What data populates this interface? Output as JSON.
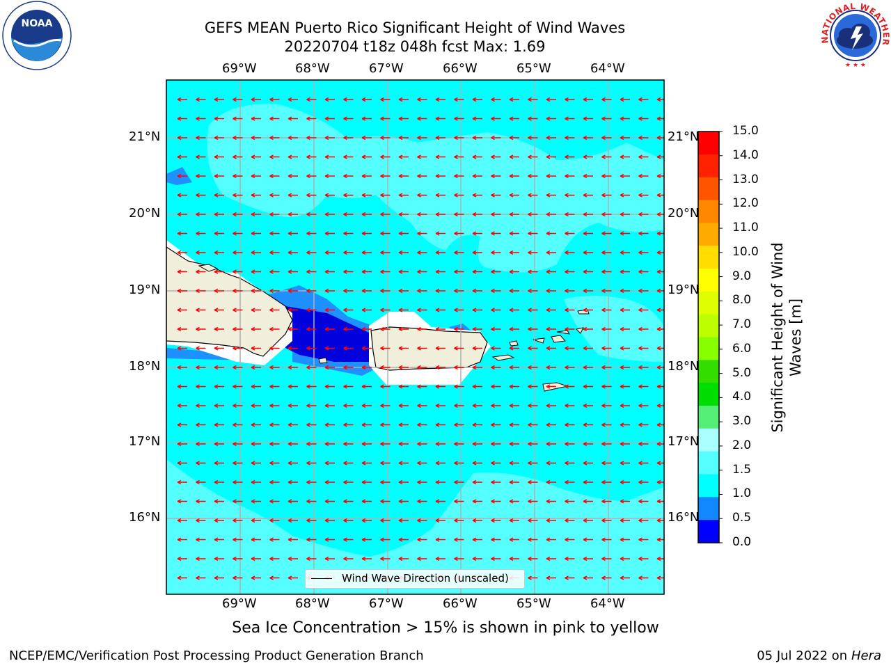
{
  "title": {
    "line1": "GEFS MEAN Puerto Rico Significant Height of Wind Waves",
    "line2": "20220704 t18z 048h fcst   Max: 1.69"
  },
  "logos": {
    "left": "noaa-logo",
    "left_text": "NOAA",
    "right": "national-weather-service-logo",
    "right_text": "NATIONAL WEATHER SERVICE"
  },
  "map": {
    "lon_labels": [
      "69°W",
      "68°W",
      "67°W",
      "66°W",
      "65°W",
      "64°W"
    ],
    "lat_labels": [
      "21°N",
      "20°N",
      "19°N",
      "18°N",
      "17°N",
      "16°N"
    ],
    "field_color": "#00ffff",
    "land_color": "#efefdc",
    "arrow_color": "#ff0000",
    "arrow_direction": "westward"
  },
  "legend": {
    "label": "Wind Wave Direction (unscaled)"
  },
  "colorbar": {
    "label_line1": "Significant Height of Wind",
    "label_line2": "Waves [m]",
    "ticks": [
      "15.0",
      "14.0",
      "13.0",
      "12.0",
      "11.0",
      "10.0",
      "9.0",
      "8.0",
      "7.0",
      "6.0",
      "5.0",
      "4.0",
      "3.0",
      "2.0",
      "1.5",
      "1.0",
      "0.5",
      "0.0"
    ],
    "colors": [
      "#ff0000",
      "#ff2200",
      "#ff5500",
      "#ff8800",
      "#ffaa00",
      "#ffdd00",
      "#ffff00",
      "#ddff00",
      "#bbff00",
      "#88ff00",
      "#33dd00",
      "#00dd00",
      "#55ee77",
      "#aaffff",
      "#55ffff",
      "#00ffff",
      "#1188ff",
      "#0000ff"
    ]
  },
  "notes": {
    "sea_ice": "Sea Ice Concentration > 15% is shown in pink to yellow",
    "footer_left": "NCEP/EMC/Verification Post Processing Product Generation Branch",
    "footer_right_date": "05 Jul 2022 on ",
    "footer_right_host": "Hera"
  }
}
